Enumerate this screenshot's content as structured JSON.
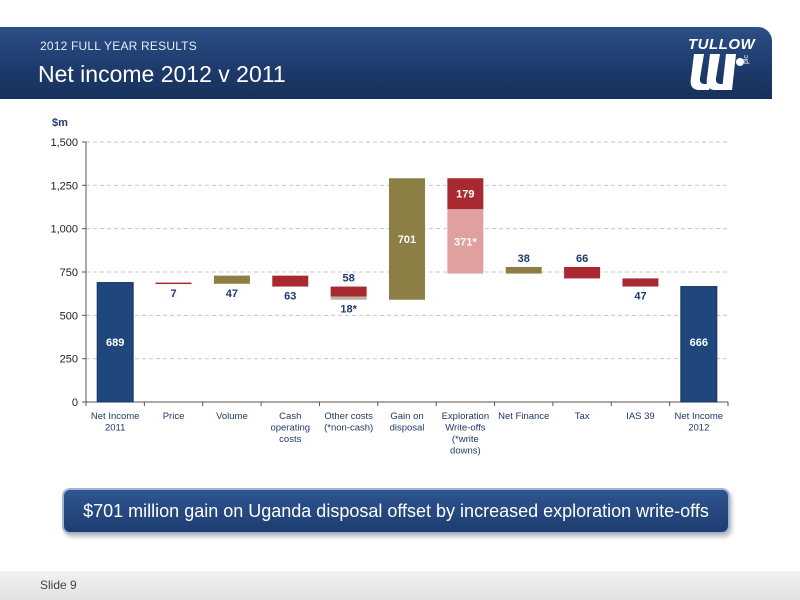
{
  "header": {
    "subtitle": "2012 FULL YEAR RESULTS",
    "title": "Net income 2012 v 2011",
    "logo_text": "TULLOW",
    "logo_suffix": "plc"
  },
  "callout": {
    "text": "$701 million gain on Uganda disposal offset by increased exploration write-offs"
  },
  "footer": {
    "slide_label": "Slide 9"
  },
  "colors": {
    "total_bar": "#1f477c",
    "increase_bar": "#8b7f46",
    "decrease_bar": "#a82a30",
    "light_decrease_bar": "#e0a0a0",
    "grey_segment": "#b8b2a0",
    "label_text": "#1f3a6b"
  },
  "chart_data": {
    "type": "bar",
    "subtype": "waterfall",
    "ylabel": "$m",
    "ylim": [
      0,
      1500
    ],
    "yticks": [
      "0",
      "250",
      "500",
      "750",
      "1,000",
      "1,250",
      "1,500"
    ],
    "ytick_values": [
      0,
      250,
      500,
      750,
      1000,
      1250,
      1500
    ],
    "grid": true,
    "categories": [
      [
        "Net Income",
        "2011"
      ],
      [
        "Price"
      ],
      [
        "Volume"
      ],
      [
        "Cash",
        "operating",
        "costs"
      ],
      [
        "Other costs",
        "(*non-cash)"
      ],
      [
        "Gain on",
        "disposal"
      ],
      [
        "Exploration",
        "Write-offs",
        "(*write",
        "downs)"
      ],
      [
        "Net Finance"
      ],
      [
        "Tax"
      ],
      [
        "IAS 39"
      ],
      [
        "Net Income",
        "2012"
      ]
    ],
    "segments": [
      {
        "cat": 0,
        "from": 0,
        "to": 689,
        "kind": "total",
        "label": "689",
        "label_pos": "inside-bottom"
      },
      {
        "cat": 1,
        "from": 682,
        "to": 689,
        "kind": "decrease",
        "label": "7",
        "label_pos": "below"
      },
      {
        "cat": 2,
        "from": 682,
        "to": 729,
        "kind": "increase",
        "label": "47",
        "label_pos": "below"
      },
      {
        "cat": 3,
        "from": 666,
        "to": 729,
        "kind": "decrease",
        "label": "63",
        "label_pos": "below"
      },
      {
        "cat": 4,
        "from": 608,
        "to": 666,
        "kind": "decrease",
        "label": "58",
        "label_pos": "above"
      },
      {
        "cat": 4,
        "from": 590,
        "to": 608,
        "kind": "grey",
        "label": "18*",
        "label_pos": "below"
      },
      {
        "cat": 5,
        "from": 590,
        "to": 1291,
        "kind": "increase",
        "label": "701",
        "label_pos": "inside"
      },
      {
        "cat": 6,
        "from": 1112,
        "to": 1291,
        "kind": "decrease",
        "label": "179",
        "label_pos": "inside-white"
      },
      {
        "cat": 6,
        "from": 741,
        "to": 1112,
        "kind": "light",
        "label": "371*",
        "label_pos": "inside-white"
      },
      {
        "cat": 7,
        "from": 741,
        "to": 779,
        "kind": "increase",
        "label": "38",
        "label_pos": "above"
      },
      {
        "cat": 8,
        "from": 713,
        "to": 779,
        "kind": "decrease",
        "label": "66",
        "label_pos": "above"
      },
      {
        "cat": 9,
        "from": 666,
        "to": 713,
        "kind": "decrease",
        "label": "47",
        "label_pos": "below"
      },
      {
        "cat": 10,
        "from": 0,
        "to": 666,
        "kind": "total",
        "label": "666",
        "label_pos": "inside-bottom"
      }
    ]
  }
}
